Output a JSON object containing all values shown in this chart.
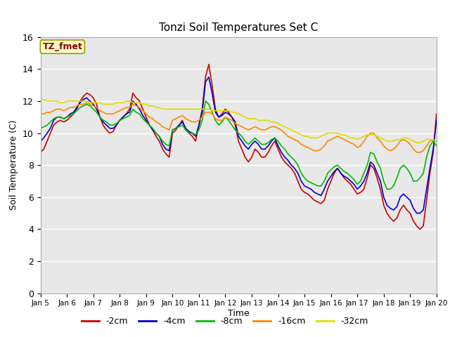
{
  "title": "Tonzi Soil Temperatures Set C",
  "xlabel": "Time",
  "ylabel": "Soil Temperature (C)",
  "plot_bg_color": "#e8e8e8",
  "ylim": [
    0,
    16
  ],
  "yticks": [
    0,
    2,
    4,
    6,
    8,
    10,
    12,
    14,
    16
  ],
  "xtick_labels": [
    "Jan 5",
    "Jan 6",
    "Jan 7",
    "Jan 8",
    "Jan 9",
    "Jan 10",
    "Jan 11",
    "Jan 12",
    "Jan 13",
    "Jan 14",
    "Jan 15",
    "Jan 16",
    "Jan 17",
    "Jan 18",
    "Jan 19",
    "Jan 20"
  ],
  "legend_label": "TZ_fmet",
  "series_colors": [
    "#cc0000",
    "#0000cc",
    "#00bb00",
    "#ff8800",
    "#dddd00"
  ],
  "series_labels": [
    "-2cm",
    "-4cm",
    "-8cm",
    "-16cm",
    "-32cm"
  ],
  "t": [
    0.0,
    0.125,
    0.25,
    0.375,
    0.5,
    0.625,
    0.75,
    0.875,
    1.0,
    1.125,
    1.25,
    1.375,
    1.5,
    1.625,
    1.75,
    1.875,
    2.0,
    2.125,
    2.25,
    2.375,
    2.5,
    2.625,
    2.75,
    2.875,
    3.0,
    3.125,
    3.25,
    3.375,
    3.5,
    3.625,
    3.75,
    3.875,
    4.0,
    4.125,
    4.25,
    4.375,
    4.5,
    4.625,
    4.75,
    4.875,
    5.0,
    5.125,
    5.25,
    5.375,
    5.5,
    5.625,
    5.75,
    5.875,
    6.0,
    6.125,
    6.25,
    6.375,
    6.5,
    6.625,
    6.75,
    6.875,
    7.0,
    7.125,
    7.25,
    7.375,
    7.5,
    7.625,
    7.75,
    7.875,
    8.0,
    8.125,
    8.25,
    8.375,
    8.5,
    8.625,
    8.75,
    8.875,
    9.0,
    9.125,
    9.25,
    9.375,
    9.5,
    9.625,
    9.75,
    9.875,
    10.0,
    10.125,
    10.25,
    10.375,
    10.5,
    10.625,
    10.75,
    10.875,
    11.0,
    11.125,
    11.25,
    11.375,
    11.5,
    11.625,
    11.75,
    11.875,
    12.0,
    12.125,
    12.25,
    12.375,
    12.5,
    12.625,
    12.75,
    12.875,
    13.0,
    13.125,
    13.25,
    13.375,
    13.5,
    13.625,
    13.75,
    13.875,
    14.0,
    14.125,
    14.25,
    14.375,
    14.5,
    14.625,
    14.75,
    14.875,
    15.0
  ],
  "d2cm": [
    8.8,
    9.0,
    9.5,
    10.0,
    10.5,
    10.7,
    10.8,
    10.7,
    10.8,
    11.0,
    11.2,
    11.5,
    12.0,
    12.3,
    12.5,
    12.4,
    12.2,
    11.8,
    11.0,
    10.5,
    10.2,
    10.0,
    10.1,
    10.5,
    10.8,
    11.0,
    11.2,
    11.5,
    12.5,
    12.2,
    12.0,
    11.5,
    11.0,
    10.5,
    10.2,
    9.8,
    9.5,
    9.0,
    8.7,
    8.5,
    10.0,
    10.2,
    10.5,
    10.8,
    10.2,
    10.0,
    9.8,
    9.5,
    10.5,
    11.5,
    13.5,
    14.3,
    13.0,
    11.5,
    11.0,
    11.2,
    11.5,
    11.3,
    11.0,
    10.5,
    9.5,
    9.0,
    8.5,
    8.2,
    8.5,
    9.0,
    8.8,
    8.5,
    8.5,
    8.8,
    9.2,
    9.5,
    9.0,
    8.5,
    8.2,
    8.0,
    7.8,
    7.5,
    7.0,
    6.5,
    6.3,
    6.2,
    6.0,
    5.8,
    5.7,
    5.6,
    5.8,
    6.5,
    7.0,
    7.5,
    7.8,
    7.5,
    7.2,
    7.0,
    6.8,
    6.5,
    6.2,
    6.3,
    6.5,
    7.2,
    8.0,
    7.8,
    7.2,
    6.5,
    5.5,
    5.0,
    4.7,
    4.5,
    4.7,
    5.2,
    5.5,
    5.2,
    5.0,
    4.5,
    4.2,
    4.0,
    4.2,
    5.8,
    7.5,
    8.8,
    11.2
  ],
  "d4cm": [
    9.5,
    9.7,
    10.0,
    10.3,
    10.8,
    11.0,
    11.0,
    10.9,
    11.0,
    11.2,
    11.3,
    11.6,
    11.9,
    12.1,
    12.2,
    12.0,
    11.8,
    11.5,
    11.0,
    10.7,
    10.5,
    10.3,
    10.3,
    10.5,
    10.8,
    11.0,
    11.2,
    11.3,
    12.0,
    11.8,
    11.5,
    11.1,
    10.8,
    10.5,
    10.2,
    10.0,
    9.8,
    9.3,
    9.0,
    8.9,
    10.2,
    10.3,
    10.5,
    10.7,
    10.3,
    10.1,
    10.0,
    9.8,
    10.5,
    11.3,
    13.2,
    13.5,
    12.5,
    11.3,
    11.0,
    11.1,
    11.3,
    11.2,
    11.0,
    10.7,
    9.8,
    9.5,
    9.2,
    9.0,
    9.3,
    9.5,
    9.3,
    9.0,
    9.0,
    9.2,
    9.5,
    9.7,
    9.2,
    8.8,
    8.5,
    8.3,
    8.0,
    7.8,
    7.5,
    7.0,
    6.7,
    6.6,
    6.5,
    6.3,
    6.2,
    6.1,
    6.5,
    7.0,
    7.3,
    7.6,
    7.8,
    7.5,
    7.3,
    7.2,
    7.0,
    6.8,
    6.5,
    6.7,
    7.0,
    7.5,
    8.2,
    8.0,
    7.5,
    7.0,
    6.0,
    5.5,
    5.3,
    5.2,
    5.4,
    6.0,
    6.2,
    6.0,
    5.8,
    5.3,
    5.0,
    5.0,
    5.2,
    6.5,
    7.8,
    9.0,
    10.8
  ],
  "d8cm": [
    10.3,
    10.4,
    10.5,
    10.7,
    10.9,
    11.0,
    11.0,
    10.9,
    11.0,
    11.1,
    11.2,
    11.4,
    11.6,
    11.7,
    11.8,
    11.7,
    11.5,
    11.3,
    11.0,
    10.8,
    10.7,
    10.5,
    10.5,
    10.6,
    10.8,
    10.9,
    11.0,
    11.1,
    11.5,
    11.3,
    11.2,
    10.9,
    10.7,
    10.5,
    10.3,
    10.0,
    9.8,
    9.5,
    9.3,
    9.2,
    10.2,
    10.3,
    10.4,
    10.5,
    10.2,
    10.0,
    10.0,
    9.9,
    10.2,
    10.8,
    12.0,
    11.8,
    11.3,
    10.8,
    10.5,
    10.7,
    11.0,
    10.8,
    10.5,
    10.2,
    10.0,
    9.8,
    9.5,
    9.3,
    9.5,
    9.7,
    9.5,
    9.3,
    9.3,
    9.4,
    9.6,
    9.7,
    9.5,
    9.2,
    9.0,
    8.7,
    8.5,
    8.3,
    8.0,
    7.5,
    7.2,
    7.0,
    6.9,
    6.8,
    6.7,
    6.7,
    7.0,
    7.5,
    7.7,
    7.9,
    8.0,
    7.8,
    7.6,
    7.5,
    7.3,
    7.1,
    6.8,
    7.0,
    7.5,
    8.0,
    8.8,
    8.7,
    8.2,
    7.8,
    7.0,
    6.5,
    6.5,
    6.7,
    7.2,
    7.8,
    8.0,
    7.8,
    7.5,
    7.0,
    7.0,
    7.2,
    7.5,
    8.5,
    9.2,
    9.5,
    9.2
  ],
  "d16cm": [
    11.2,
    11.2,
    11.3,
    11.3,
    11.4,
    11.5,
    11.5,
    11.4,
    11.5,
    11.6,
    11.6,
    11.7,
    11.8,
    11.8,
    11.9,
    11.8,
    11.7,
    11.6,
    11.4,
    11.3,
    11.2,
    11.2,
    11.2,
    11.3,
    11.4,
    11.5,
    11.6,
    11.6,
    11.8,
    11.7,
    11.6,
    11.4,
    11.2,
    11.0,
    10.9,
    10.7,
    10.6,
    10.4,
    10.3,
    10.2,
    10.8,
    10.9,
    11.0,
    11.1,
    10.9,
    10.8,
    10.7,
    10.7,
    10.8,
    11.0,
    11.3,
    11.3,
    11.2,
    10.9,
    10.8,
    10.8,
    11.0,
    10.9,
    10.8,
    10.6,
    10.5,
    10.4,
    10.3,
    10.2,
    10.3,
    10.4,
    10.3,
    10.2,
    10.2,
    10.3,
    10.4,
    10.4,
    10.3,
    10.2,
    10.0,
    9.8,
    9.7,
    9.6,
    9.5,
    9.3,
    9.2,
    9.1,
    9.0,
    8.9,
    8.9,
    9.0,
    9.2,
    9.5,
    9.6,
    9.7,
    9.8,
    9.7,
    9.6,
    9.5,
    9.4,
    9.3,
    9.1,
    9.2,
    9.5,
    9.8,
    10.0,
    10.0,
    9.7,
    9.5,
    9.2,
    9.0,
    8.9,
    9.0,
    9.2,
    9.5,
    9.6,
    9.5,
    9.3,
    9.0,
    8.8,
    8.8,
    8.9,
    9.2,
    9.5,
    9.6,
    9.5
  ],
  "d32cm": [
    12.1,
    12.1,
    12.0,
    12.0,
    12.0,
    12.0,
    11.9,
    11.9,
    12.0,
    12.0,
    12.0,
    12.0,
    12.0,
    12.0,
    12.0,
    11.9,
    11.9,
    11.9,
    11.9,
    11.8,
    11.8,
    11.8,
    11.8,
    11.9,
    11.9,
    11.9,
    12.0,
    12.0,
    11.9,
    11.9,
    11.9,
    11.8,
    11.8,
    11.7,
    11.7,
    11.6,
    11.6,
    11.5,
    11.5,
    11.5,
    11.5,
    11.5,
    11.5,
    11.5,
    11.5,
    11.5,
    11.5,
    11.5,
    11.5,
    11.5,
    11.5,
    11.5,
    11.4,
    11.4,
    11.4,
    11.4,
    11.4,
    11.4,
    11.3,
    11.3,
    11.2,
    11.1,
    11.0,
    10.9,
    10.9,
    10.9,
    10.8,
    10.8,
    10.8,
    10.8,
    10.7,
    10.7,
    10.6,
    10.5,
    10.4,
    10.3,
    10.2,
    10.1,
    10.0,
    9.9,
    9.8,
    9.8,
    9.7,
    9.7,
    9.7,
    9.8,
    9.9,
    10.0,
    10.0,
    10.0,
    10.0,
    9.9,
    9.9,
    9.8,
    9.7,
    9.7,
    9.6,
    9.7,
    9.8,
    9.9,
    9.9,
    9.9,
    9.8,
    9.7,
    9.6,
    9.5,
    9.5,
    9.5,
    9.6,
    9.6,
    9.7,
    9.7,
    9.6,
    9.5,
    9.4,
    9.4,
    9.5,
    9.6,
    9.6,
    9.6,
    9.5
  ]
}
